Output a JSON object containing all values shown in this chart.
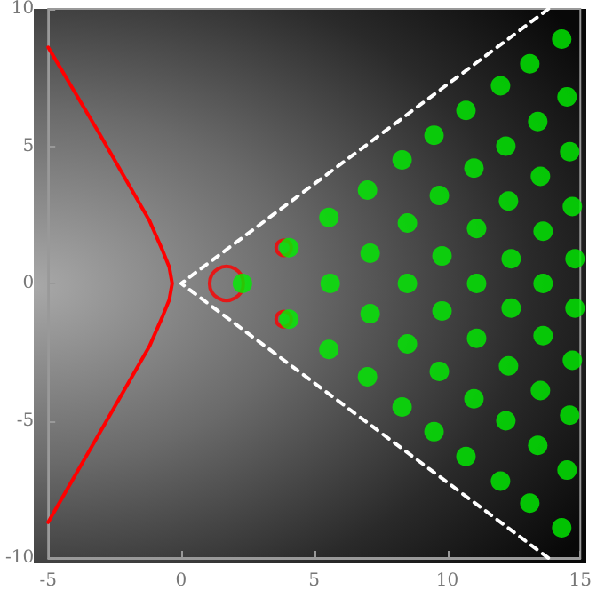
{
  "chart_data": {
    "type": "scatter",
    "xlim": [
      -5,
      15
    ],
    "ylim": [
      -10,
      10
    ],
    "xticks": [
      -5,
      0,
      5,
      10,
      15
    ],
    "yticks": [
      -10,
      -5,
      0,
      5,
      10
    ],
    "grid": false,
    "series": [
      {
        "type": "line",
        "color": "#ff0000",
        "line_style": "solid",
        "marker": "none",
        "x": [
          -5,
          -3.1,
          -1.2,
          -0.7,
          -0.45,
          -0.34,
          -0.45,
          -0.7,
          -1.2,
          -3.1,
          -5
        ],
        "values": [
          8.6,
          5.5,
          2.3,
          1.2,
          0.6,
          0,
          -0.6,
          -1.2,
          -2.3,
          -5.5,
          -8.7
        ]
      },
      {
        "type": "bubble",
        "color": "#ff0000",
        "marker": "circle",
        "x": [
          1.7,
          3.85,
          3.85
        ],
        "values": [
          0,
          1.3,
          -1.3
        ],
        "sizes": [
          1,
          0.2,
          0.2
        ]
      },
      {
        "type": "line",
        "color": "#ffffff",
        "line_style": "dashed",
        "marker": "none",
        "x": [
          13.8,
          0,
          13.8
        ],
        "values": [
          10,
          0,
          -10
        ]
      },
      {
        "color": "#00f000",
        "marker": "circle",
        "x": [
          2.3,
          5.6,
          8.5,
          11.1,
          13.6,
          4.05,
          7.1,
          9.8,
          12.4,
          14.8,
          5.55,
          8.5,
          11.1,
          13.6,
          14.7,
          7.0,
          9.7,
          12.3,
          13.5,
          14.6,
          8.3,
          11.0,
          12.2,
          13.4,
          14.5,
          9.5,
          10.7,
          12.0,
          13.1,
          14.3,
          4.05,
          7.1,
          9.8,
          12.4,
          14.8,
          5.55,
          8.5,
          11.1,
          13.6,
          14.7,
          7.0,
          9.7,
          12.3,
          13.5,
          14.6,
          8.3,
          11.0,
          12.2,
          13.4,
          14.5,
          9.5,
          10.7,
          12.0,
          13.1,
          14.3
        ],
        "values": [
          0,
          0,
          0,
          0,
          0,
          1.3,
          1.1,
          1.0,
          0.9,
          0.9,
          2.4,
          2.2,
          2.0,
          1.9,
          2.8,
          3.4,
          3.2,
          3.0,
          3.9,
          4.8,
          4.5,
          4.2,
          5.0,
          5.9,
          6.8,
          5.4,
          6.3,
          7.2,
          8.0,
          8.9,
          -1.3,
          -1.1,
          -1.0,
          -0.9,
          -0.9,
          -2.4,
          -2.2,
          -2.0,
          -1.9,
          -2.8,
          -3.4,
          -3.2,
          -3.0,
          -3.9,
          -4.8,
          -4.5,
          -4.2,
          -5.0,
          -5.9,
          -6.8,
          -5.4,
          -6.3,
          -7.2,
          -8.0,
          -8.9
        ]
      }
    ]
  }
}
